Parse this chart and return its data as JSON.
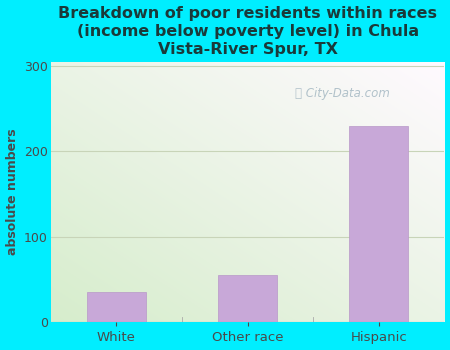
{
  "categories": [
    "White",
    "Other race",
    "Hispanic"
  ],
  "values": [
    35,
    55,
    230
  ],
  "bar_color": "#c8a8d8",
  "bar_edge_color": "#b898c8",
  "title": "Breakdown of poor residents within races\n(income below poverty level) in Chula\nVista-River Spur, TX",
  "ylabel": "absolute numbers",
  "ylim": [
    0,
    305
  ],
  "yticks": [
    0,
    100,
    200,
    300
  ],
  "background_color": "#00eeff",
  "plot_bg_topleft": "#d4edcc",
  "plot_bg_topright": "#e8f0f8",
  "plot_bg_bottomleft": "#c8e8c0",
  "plot_bg_bottomright": "#f0f8ff",
  "title_color": "#1a3a3a",
  "title_fontsize": 11.5,
  "axis_label_color": "#4a4a4a",
  "tick_color": "#4a4a4a",
  "grid_color": "#c8d4b8",
  "watermark": "City-Data.com",
  "bar_width": 0.45
}
